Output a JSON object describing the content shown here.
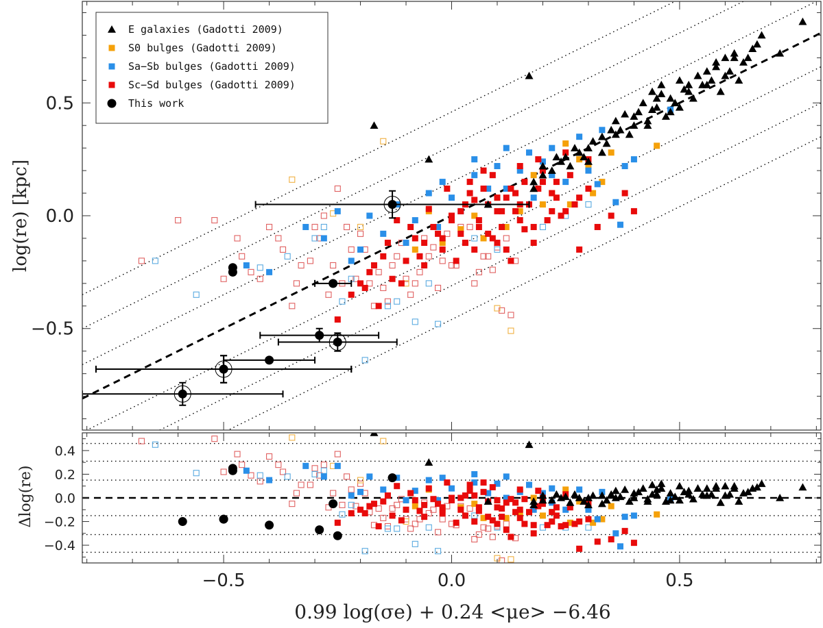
{
  "chart_data": {
    "type": "scatter",
    "xlabel": "0.99 log(σe) + 0.24 <μe> −6.46",
    "ylabel_top": "log(re) [kpc]",
    "ylabel_bottom": "Δlog(re)",
    "xlim": [
      -0.81,
      0.81
    ],
    "top": {
      "ylim": [
        -0.95,
        0.95
      ],
      "yticks": [
        -0.5,
        0.0,
        0.5
      ],
      "ytick_labels": [
        "−0.5",
        "0.0",
        "0.5"
      ],
      "fit_line": {
        "slope": 1.0,
        "intercept": 0.0,
        "style": "dashed"
      },
      "offset_lines": {
        "slope": 1.0,
        "intercepts": [
          0.46,
          0.31,
          0.15,
          -0.15,
          -0.31,
          -0.46
        ],
        "style": "dotted"
      }
    },
    "bottom": {
      "ylim": [
        -0.55,
        0.55
      ],
      "yticks": [
        -0.4,
        -0.2,
        0.0,
        0.2,
        0.4
      ],
      "ytick_labels": [
        "−0.4",
        "−0.2",
        "0.0",
        "0.2",
        "0.4"
      ],
      "hlines_dotted": [
        0.46,
        0.31,
        0.15,
        -0.15,
        -0.31,
        -0.46
      ],
      "hline_dashed": 0.0
    },
    "xticks": [
      -0.5,
      0.0,
      0.5
    ],
    "xtick_labels": [
      "−0.5",
      "0.0",
      "0.5"
    ],
    "legend": {
      "position": "top-left",
      "entries": [
        {
          "label": "E galaxies (Gadotti 2009)",
          "marker": "triangle",
          "color": "#000000"
        },
        {
          "label": "S0 bulges (Gadotti 2009)",
          "marker": "square",
          "color": "#f5a10a"
        },
        {
          "label": "Sa−Sb bulges (Gadotti 2009)",
          "marker": "square",
          "color": "#2a8fe8"
        },
        {
          "label": "Sc−Sd bulges (Gadotti 2009)",
          "marker": "square",
          "color": "#e80b0b"
        },
        {
          "label": "This work",
          "marker": "circle",
          "color": "#000000"
        }
      ]
    },
    "series": [
      {
        "name": "E galaxies (Gadotti 2009)",
        "marker": "triangle",
        "color": "#000000",
        "x": [
          0.35,
          0.38,
          0.4,
          0.42,
          0.44,
          0.45,
          0.46,
          0.48,
          0.5,
          0.52,
          0.54,
          0.56,
          0.58,
          0.6,
          0.62,
          0.64,
          0.66,
          0.68,
          0.72,
          0.77,
          0.3,
          0.28,
          0.26,
          0.24,
          0.22,
          0.2,
          0.18,
          0.33,
          0.36,
          0.39,
          0.41,
          0.43,
          0.47,
          0.49,
          0.51,
          0.53,
          0.55,
          0.57,
          0.59,
          0.61,
          0.63,
          0.65,
          0.67,
          0.31,
          0.29,
          0.27,
          0.25,
          0.34,
          0.37,
          0.45,
          0.48,
          0.52,
          0.56,
          0.6,
          0.43,
          0.46,
          0.5,
          0.54,
          0.58,
          0.62,
          0.36,
          0.4,
          0.44,
          0.33,
          0.3,
          0.18,
          0.2,
          0.23,
          -0.17,
          -0.05,
          0.17,
          0.08
        ],
        "y": [
          0.38,
          0.45,
          0.4,
          0.5,
          0.55,
          0.48,
          0.58,
          0.52,
          0.6,
          0.55,
          0.62,
          0.58,
          0.66,
          0.62,
          0.7,
          0.68,
          0.74,
          0.8,
          0.72,
          0.86,
          0.3,
          0.28,
          0.22,
          0.24,
          0.2,
          0.18,
          0.15,
          0.35,
          0.42,
          0.36,
          0.46,
          0.4,
          0.44,
          0.5,
          0.56,
          0.52,
          0.58,
          0.6,
          0.55,
          0.64,
          0.6,
          0.7,
          0.76,
          0.33,
          0.26,
          0.3,
          0.26,
          0.32,
          0.38,
          0.52,
          0.46,
          0.58,
          0.64,
          0.7,
          0.42,
          0.54,
          0.48,
          0.62,
          0.68,
          0.72,
          0.36,
          0.44,
          0.47,
          0.28,
          0.24,
          0.12,
          0.22,
          0.26,
          0.4,
          0.25,
          0.62,
          0.05
        ],
        "residual": [
          0.03,
          0.07,
          0.0,
          0.08,
          0.11,
          0.03,
          0.12,
          0.04,
          0.1,
          0.03,
          0.08,
          0.02,
          0.08,
          0.02,
          0.08,
          0.04,
          0.08,
          0.12,
          0.0,
          0.09,
          0.0,
          0.0,
          -0.04,
          0.0,
          -0.02,
          -0.02,
          -0.03,
          0.02,
          0.06,
          -0.03,
          0.05,
          -0.03,
          -0.03,
          0.01,
          0.05,
          -0.01,
          0.03,
          0.03,
          -0.04,
          0.03,
          -0.03,
          0.05,
          0.09,
          0.02,
          -0.03,
          0.03,
          0.01,
          -0.02,
          0.01,
          0.07,
          -0.02,
          0.06,
          0.08,
          0.1,
          -0.01,
          0.08,
          -0.02,
          0.08,
          0.1,
          0.1,
          0.0,
          0.04,
          0.03,
          -0.05,
          -0.06,
          -0.06,
          0.02,
          0.03,
          0.55,
          0.3,
          0.45,
          -0.03
        ]
      },
      {
        "name": "S0 bulges (Gadotti 2009)",
        "marker": "square",
        "color": "#f5a10a",
        "x": [
          0.25,
          0.28,
          0.3,
          0.33,
          0.35,
          0.22,
          0.2,
          0.18,
          0.15,
          0.12,
          0.1,
          0.07,
          0.05,
          0.02,
          -0.02,
          -0.05,
          -0.08,
          0.45,
          0.26,
          0.31
        ],
        "y": [
          0.32,
          0.25,
          0.22,
          0.15,
          0.28,
          0.1,
          0.05,
          0.18,
          0.02,
          -0.05,
          0.08,
          -0.1,
          0.0,
          -0.06,
          -0.12,
          0.02,
          -0.15,
          0.31,
          0.05,
          0.1
        ],
        "residual": [
          0.07,
          -0.03,
          -0.08,
          -0.18,
          -0.07,
          -0.12,
          -0.15,
          0.0,
          -0.13,
          -0.17,
          -0.02,
          -0.17,
          -0.05,
          -0.08,
          -0.1,
          0.07,
          -0.07,
          -0.14,
          -0.21,
          -0.21
        ]
      },
      {
        "name": "Sa−Sb bulges (Gadotti 2009)",
        "marker": "square",
        "color": "#2a8fe8",
        "x": [
          -0.32,
          -0.28,
          -0.25,
          -0.22,
          -0.2,
          -0.18,
          -0.15,
          -0.12,
          -0.1,
          -0.08,
          -0.05,
          -0.03,
          0.0,
          0.02,
          0.05,
          0.08,
          0.1,
          0.12,
          0.15,
          0.18,
          0.2,
          0.22,
          0.25,
          0.28,
          0.3,
          0.33,
          0.36,
          0.38,
          0.4,
          0.05,
          0.08,
          -0.02,
          0.12,
          0.17,
          0.22,
          0.27,
          0.32,
          -0.45,
          -0.4,
          0.37,
          0.48
        ],
        "y": [
          -0.05,
          -0.1,
          0.02,
          -0.2,
          -0.15,
          0.0,
          -0.08,
          0.05,
          -0.12,
          -0.02,
          0.1,
          -0.05,
          0.08,
          0.02,
          0.18,
          0.05,
          0.22,
          0.12,
          0.2,
          0.08,
          0.24,
          0.3,
          0.15,
          0.35,
          0.2,
          0.38,
          0.06,
          0.22,
          0.25,
          0.25,
          0.12,
          0.15,
          0.3,
          0.28,
          0.18,
          0.05,
          0.14,
          -0.22,
          -0.25,
          -0.04,
          0.47
        ],
        "residual": [
          0.27,
          0.18,
          0.27,
          0.02,
          0.05,
          0.18,
          0.07,
          0.17,
          -0.02,
          0.06,
          0.15,
          -0.02,
          0.08,
          0.0,
          0.13,
          -0.03,
          0.12,
          0.0,
          0.05,
          -0.1,
          0.04,
          0.08,
          -0.1,
          0.07,
          -0.1,
          0.05,
          -0.3,
          -0.16,
          -0.15,
          0.2,
          0.04,
          0.17,
          0.18,
          0.11,
          -0.04,
          -0.22,
          -0.18,
          0.23,
          0.15,
          -0.41,
          -0.01
        ]
      },
      {
        "name": "Sc−Sd bulges (Gadotti 2009)",
        "marker": "square",
        "color": "#e80b0b",
        "x": [
          -0.2,
          -0.18,
          -0.15,
          -0.13,
          -0.1,
          -0.08,
          -0.06,
          -0.04,
          -0.02,
          0.0,
          0.02,
          0.04,
          0.06,
          0.08,
          0.1,
          0.12,
          0.14,
          0.16,
          0.18,
          0.2,
          0.22,
          0.24,
          0.26,
          0.28,
          0.3,
          -0.17,
          -0.14,
          -0.11,
          -0.07,
          -0.03,
          0.01,
          0.03,
          0.07,
          0.09,
          0.11,
          0.13,
          0.15,
          0.17,
          0.19,
          0.21,
          0.23,
          0.25,
          0.27,
          -0.22,
          -0.19,
          -0.16,
          -0.09,
          -0.05,
          0.05,
          0.09,
          0.13,
          0.07,
          0.11,
          0.15,
          0.19,
          0.23,
          0.03,
          -0.01,
          0.0,
          0.05,
          0.1,
          0.15,
          0.2,
          0.25,
          0.3,
          -0.12,
          -0.06,
          0.02,
          0.08,
          0.14,
          0.18,
          0.06,
          0.12,
          -0.02,
          0.04,
          0.1,
          0.16,
          0.22,
          0.28,
          0.35,
          -0.25,
          0.32,
          0.38,
          0.4
        ],
        "y": [
          -0.3,
          -0.25,
          -0.18,
          -0.28,
          -0.2,
          -0.1,
          -0.22,
          -0.05,
          -0.15,
          0.0,
          -0.08,
          0.1,
          -0.02,
          0.05,
          -0.12,
          0.08,
          0.02,
          0.15,
          -0.05,
          0.2,
          0.1,
          0.0,
          0.18,
          0.08,
          0.25,
          -0.22,
          -0.12,
          -0.3,
          -0.18,
          -0.08,
          -0.2,
          0.05,
          0.12,
          -0.1,
          0.02,
          -0.2,
          0.22,
          0.05,
          0.12,
          -0.02,
          0.15,
          0.28,
          0.05,
          -0.35,
          -0.32,
          -0.4,
          -0.05,
          0.03,
          -0.15,
          0.18,
          0.12,
          0.2,
          -0.05,
          0.05,
          0.25,
          0.08,
          -0.12,
          0.12,
          -0.02,
          0.07,
          0.02,
          -0.02,
          0.15,
          0.02,
          0.12,
          -0.02,
          -0.12,
          0.02,
          -0.08,
          0.1,
          -0.12,
          -0.05,
          -0.15,
          -0.1,
          0.15,
          0.08,
          -0.06,
          0.02,
          -0.15,
          0.0,
          -0.46,
          -0.05,
          0.1,
          0.02
        ],
        "residual": [
          -0.1,
          -0.07,
          -0.03,
          -0.15,
          -0.1,
          -0.02,
          -0.16,
          -0.01,
          -0.13,
          0.0,
          -0.1,
          0.06,
          -0.08,
          -0.03,
          -0.22,
          -0.04,
          -0.12,
          -0.01,
          -0.23,
          0.0,
          -0.12,
          -0.24,
          -0.08,
          -0.2,
          -0.05,
          -0.05,
          0.02,
          -0.19,
          -0.11,
          -0.05,
          -0.21,
          0.02,
          0.05,
          -0.19,
          -0.09,
          -0.33,
          0.07,
          -0.12,
          -0.07,
          -0.23,
          -0.08,
          0.03,
          -0.22,
          -0.13,
          -0.13,
          -0.24,
          0.04,
          0.08,
          -0.2,
          0.09,
          -0.01,
          0.13,
          -0.16,
          -0.1,
          0.06,
          -0.15,
          -0.15,
          0.13,
          -0.02,
          0.02,
          -0.08,
          -0.17,
          -0.05,
          -0.23,
          -0.18,
          0.1,
          -0.06,
          0.0,
          -0.16,
          -0.04,
          -0.3,
          -0.11,
          -0.27,
          -0.08,
          0.11,
          -0.02,
          -0.22,
          -0.2,
          -0.43,
          -0.35,
          -0.21,
          -0.37,
          -0.28,
          -0.38
        ]
      },
      {
        "name": "Sc−Sd bulges (Gadotti 2009) open",
        "marker": "open-square",
        "color": "#e06060",
        "x": [
          -0.68,
          -0.6,
          -0.52,
          -0.47,
          -0.44,
          -0.4,
          -0.37,
          -0.34,
          -0.31,
          -0.29,
          -0.27,
          -0.25,
          -0.23,
          -0.21,
          -0.19,
          -0.17,
          -0.15,
          -0.13,
          -0.11,
          -0.09,
          -0.07,
          -0.05,
          -0.03,
          -0.01,
          0.01,
          0.03,
          0.05,
          0.07,
          0.09,
          0.11,
          -0.35,
          -0.3,
          -0.26,
          -0.22,
          -0.18,
          -0.14,
          -0.1,
          -0.06,
          -0.02,
          0.02,
          0.06,
          0.1,
          0.14,
          -0.42,
          -0.38,
          -0.33,
          -0.28,
          -0.24,
          -0.2,
          -0.16,
          -0.12,
          -0.08,
          -0.04,
          0.0,
          0.04,
          0.08,
          0.12,
          0.13,
          -0.5,
          -0.46
        ],
        "y": [
          -0.2,
          -0.02,
          -0.02,
          -0.1,
          -0.25,
          -0.05,
          -0.15,
          -0.3,
          -0.2,
          -0.1,
          -0.35,
          0.12,
          -0.05,
          -0.28,
          -0.15,
          -0.4,
          -0.32,
          -0.22,
          -0.12,
          -0.35,
          -0.25,
          -0.18,
          -0.32,
          -0.08,
          -0.22,
          -0.12,
          -0.3,
          -0.18,
          -0.24,
          -0.42,
          -0.4,
          -0.05,
          -0.22,
          -0.15,
          -0.3,
          -0.38,
          -0.28,
          -0.1,
          -0.2,
          -0.05,
          -0.25,
          -0.14,
          -0.2,
          -0.28,
          -0.1,
          -0.22,
          0.0,
          -0.3,
          -0.08,
          -0.25,
          -0.18,
          -0.3,
          -0.14,
          -0.22,
          -0.05,
          -0.18,
          -0.1,
          -0.44,
          -0.28,
          -0.18
        ],
        "residual": [
          0.48,
          0.58,
          0.5,
          0.37,
          0.19,
          0.35,
          0.22,
          0.04,
          0.11,
          0.19,
          -0.08,
          0.37,
          0.18,
          -0.07,
          0.04,
          -0.23,
          -0.17,
          -0.09,
          -0.01,
          -0.26,
          -0.18,
          -0.13,
          -0.29,
          -0.07,
          -0.23,
          -0.15,
          -0.35,
          -0.25,
          -0.33,
          -0.53,
          -0.05,
          0.25,
          0.04,
          0.07,
          -0.12,
          -0.24,
          -0.18,
          -0.04,
          -0.18,
          -0.07,
          -0.31,
          -0.24,
          -0.34,
          0.14,
          0.28,
          0.11,
          0.28,
          -0.06,
          0.12,
          -0.09,
          -0.06,
          -0.22,
          -0.1,
          -0.22,
          -0.09,
          -0.26,
          -0.22,
          -0.57,
          0.22,
          0.28
        ]
      },
      {
        "name": "Sa−Sb bulges (Gadotti 2009) open",
        "marker": "open-square",
        "color": "#5aaae0",
        "x": [
          -0.65,
          -0.56,
          -0.42,
          -0.36,
          -0.28,
          -0.24,
          -0.19,
          -0.14,
          -0.08,
          -0.05,
          0.05,
          0.1,
          0.2,
          0.25,
          0.3,
          -0.3,
          -0.22,
          -0.12,
          -0.03
        ],
        "y": [
          -0.2,
          -0.35,
          -0.23,
          -0.18,
          -0.05,
          -0.38,
          -0.64,
          -0.4,
          -0.47,
          -0.3,
          -0.1,
          -0.15,
          -0.05,
          0.0,
          0.05,
          -0.1,
          -0.28,
          -0.38,
          -0.48
        ],
        "residual": [
          0.45,
          0.21,
          0.19,
          0.18,
          0.23,
          -0.14,
          -0.45,
          -0.26,
          -0.39,
          -0.25,
          -0.15,
          -0.25,
          -0.25,
          -0.25,
          -0.25,
          0.2,
          -0.06,
          -0.26,
          -0.45
        ]
      },
      {
        "name": "S0 bulges (Gadotti 2009) open",
        "marker": "open-square",
        "color": "#f0b040",
        "x": [
          -0.35,
          -0.26,
          -0.2,
          -0.15,
          0.1,
          0.13,
          -0.1
        ],
        "y": [
          0.16,
          0.01,
          -0.05,
          0.33,
          -0.41,
          -0.51,
          -0.3
        ],
        "residual": [
          0.51,
          0.27,
          0.15,
          0.48,
          -0.51,
          -0.52,
          -0.2
        ]
      },
      {
        "name": "This work",
        "marker": "circle",
        "color": "#000000",
        "x": [
          -0.59,
          -0.5,
          -0.4,
          -0.26,
          -0.25,
          -0.5,
          -0.48,
          -0.48,
          -0.29,
          -0.13
        ],
        "y": [
          -0.79,
          -0.68,
          -0.64,
          -0.3,
          -0.56,
          -0.68,
          -0.23,
          -0.25,
          -0.53,
          0.05
        ],
        "residual": [
          -0.2,
          -0.18,
          -0.23,
          -0.05,
          -0.32,
          -0.18,
          0.25,
          0.23,
          -0.27,
          0.17
        ],
        "xerr": [
          0.22,
          0.28,
          0.1,
          0.04,
          0.13,
          0.28,
          0,
          0,
          0.13,
          0.3
        ],
        "yerr": [
          0.05,
          0.06,
          0.0,
          0.0,
          0.04,
          0.06,
          0,
          0,
          0.03,
          0.06
        ],
        "encircled": [
          true,
          true,
          false,
          false,
          true,
          false,
          false,
          false,
          false,
          true
        ]
      }
    ]
  }
}
